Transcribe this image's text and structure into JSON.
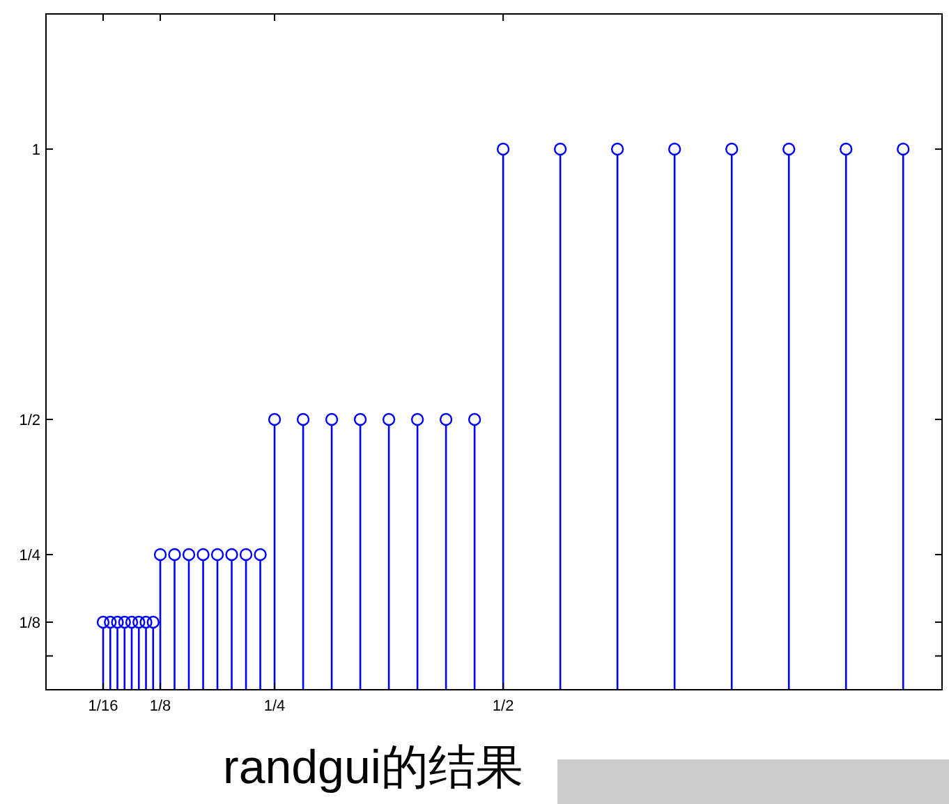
{
  "chart_data": {
    "type": "lollipop",
    "x": [
      0.0625,
      0.0703125,
      0.078125,
      0.0859375,
      0.09375,
      0.1015625,
      0.109375,
      0.1171875,
      0.125,
      0.140625,
      0.15625,
      0.171875,
      0.1875,
      0.203125,
      0.21875,
      0.234375,
      0.25,
      0.28125,
      0.3125,
      0.34375,
      0.375,
      0.40625,
      0.4375,
      0.46875,
      0.5,
      0.5625,
      0.625,
      0.6875,
      0.75,
      0.8125,
      0.875,
      0.9375
    ],
    "values": [
      0.125,
      0.125,
      0.125,
      0.125,
      0.125,
      0.125,
      0.125,
      0.125,
      0.25,
      0.25,
      0.25,
      0.25,
      0.25,
      0.25,
      0.25,
      0.25,
      0.5,
      0.5,
      0.5,
      0.5,
      0.5,
      0.5,
      0.5,
      0.5,
      1,
      1,
      1,
      1,
      1,
      1,
      1,
      1
    ],
    "color": "#0000ff",
    "marker": "circle",
    "xlim": [
      0,
      0.98
    ],
    "ylim": [
      0,
      1.25
    ],
    "xticks": [
      {
        "value": 0.0625,
        "label": "1/16"
      },
      {
        "value": 0.125,
        "label": "1/8"
      },
      {
        "value": 0.25,
        "label": "1/4"
      },
      {
        "value": 0.5,
        "label": "1/2"
      }
    ],
    "yticks": [
      {
        "value": 0.0625,
        "label": null
      },
      {
        "value": 0.125,
        "label": "1/8"
      },
      {
        "value": 0.25,
        "label": "1/4"
      },
      {
        "value": 0.5,
        "label": "1/2"
      },
      {
        "value": 1,
        "label": "1"
      }
    ],
    "grid": false,
    "annotations": [
      "randgui的结果"
    ]
  }
}
